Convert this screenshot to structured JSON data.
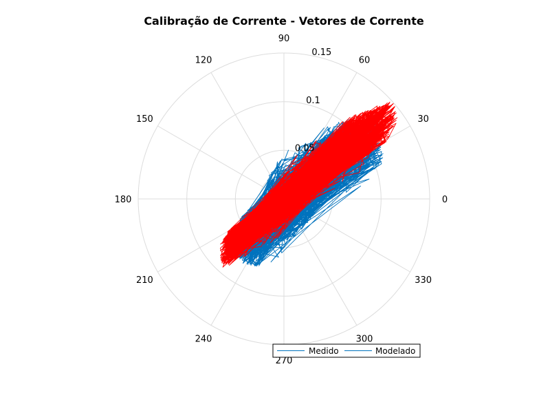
{
  "chart_data": {
    "type": "polar-line",
    "title": "Calibração de Corrente - Vetores de Corrente",
    "theta_unit": "degrees",
    "theta_ticks": [
      "0",
      "30",
      "60",
      "90",
      "120",
      "150",
      "180",
      "210",
      "240",
      "270",
      "300",
      "330"
    ],
    "r_ticks": [
      "0.05",
      "0.1",
      "0.15"
    ],
    "rlim": [
      0,
      0.15
    ],
    "grid": true,
    "legend": {
      "placement": "bottom-right",
      "orientation": "horizontal"
    },
    "series": [
      {
        "name": "Medido",
        "color": "#0072BD",
        "envelope": [
          {
            "theta": 0,
            "r": 0.048
          },
          {
            "theta": 10,
            "r": 0.082
          },
          {
            "theta": 20,
            "r": 0.108
          },
          {
            "theta": 30,
            "r": 0.12
          },
          {
            "theta": 40,
            "r": 0.128
          },
          {
            "theta": 50,
            "r": 0.11
          },
          {
            "theta": 60,
            "r": 0.085
          },
          {
            "theta": 75,
            "r": 0.055
          },
          {
            "theta": 90,
            "r": 0.048
          },
          {
            "theta": 105,
            "r": 0.035
          },
          {
            "theta": 120,
            "r": 0.03
          },
          {
            "theta": 150,
            "r": 0.02
          },
          {
            "theta": 180,
            "r": 0.02
          },
          {
            "theta": 195,
            "r": 0.035
          },
          {
            "theta": 210,
            "r": 0.06
          },
          {
            "theta": 220,
            "r": 0.08
          },
          {
            "theta": 235,
            "r": 0.08
          },
          {
            "theta": 250,
            "r": 0.075
          },
          {
            "theta": 270,
            "r": 0.055
          },
          {
            "theta": 290,
            "r": 0.04
          },
          {
            "theta": 315,
            "r": 0.035
          },
          {
            "theta": 340,
            "r": 0.035
          }
        ]
      },
      {
        "name": "Modelado",
        "color": "#FF0000",
        "envelope": [
          {
            "theta": 0,
            "r": 0.03
          },
          {
            "theta": 20,
            "r": 0.085
          },
          {
            "theta": 30,
            "r": 0.125
          },
          {
            "theta": 36,
            "r": 0.148
          },
          {
            "theta": 42,
            "r": 0.15
          },
          {
            "theta": 48,
            "r": 0.12
          },
          {
            "theta": 55,
            "r": 0.095
          },
          {
            "theta": 65,
            "r": 0.06
          },
          {
            "theta": 90,
            "r": 0.025
          },
          {
            "theta": 140,
            "r": 0.012
          },
          {
            "theta": 180,
            "r": 0.012
          },
          {
            "theta": 200,
            "r": 0.04
          },
          {
            "theta": 215,
            "r": 0.08
          },
          {
            "theta": 228,
            "r": 0.095
          },
          {
            "theta": 245,
            "r": 0.055
          },
          {
            "theta": 280,
            "r": 0.025
          },
          {
            "theta": 330,
            "r": 0.02
          }
        ]
      }
    ]
  }
}
